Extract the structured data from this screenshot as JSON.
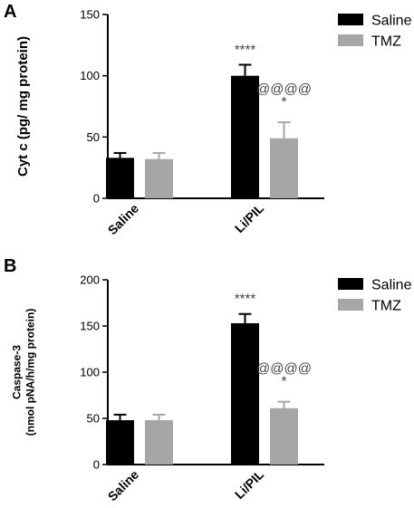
{
  "panels": [
    {
      "letter": "A"
    },
    {
      "letter": "B"
    }
  ],
  "chart_data": [
    {
      "type": "bar",
      "panel": "A",
      "ylabel": "Cyt c (pg/ mg protein)",
      "ylim": [
        0,
        150
      ],
      "yticks": [
        0,
        50,
        100,
        150
      ],
      "categories": [
        "Saline",
        "Li/PIL"
      ],
      "series": [
        {
          "name": "Saline",
          "color": "#000000",
          "values": [
            33,
            100
          ],
          "errors": [
            4,
            9
          ]
        },
        {
          "name": "TMZ",
          "color": "#a6a6a6",
          "values": [
            32,
            49
          ],
          "errors": [
            5,
            13
          ]
        }
      ],
      "annotations": [
        {
          "category": "Li/PIL",
          "series": "Saline",
          "lines": [
            "****"
          ]
        },
        {
          "category": "Li/PIL",
          "series": "TMZ",
          "lines": [
            "@@@@",
            "*"
          ]
        }
      ],
      "legend": "top-right",
      "grid": false
    },
    {
      "type": "bar",
      "panel": "B",
      "ylabel": [
        "Caspase-3",
        "(nmol pNA/h/mg protein)"
      ],
      "ylim": [
        0,
        200
      ],
      "yticks": [
        0,
        50,
        100,
        150,
        200
      ],
      "categories": [
        "Saline",
        "Li/PIL"
      ],
      "series": [
        {
          "name": "Saline",
          "color": "#000000",
          "values": [
            48,
            153
          ],
          "errors": [
            6,
            10
          ]
        },
        {
          "name": "TMZ",
          "color": "#a6a6a6",
          "values": [
            48,
            61
          ],
          "errors": [
            6,
            7
          ]
        }
      ],
      "annotations": [
        {
          "category": "Li/PIL",
          "series": "Saline",
          "lines": [
            "****"
          ]
        },
        {
          "category": "Li/PIL",
          "series": "TMZ",
          "lines": [
            "@@@@",
            "*"
          ]
        }
      ],
      "legend": "top-right",
      "grid": false
    }
  ]
}
